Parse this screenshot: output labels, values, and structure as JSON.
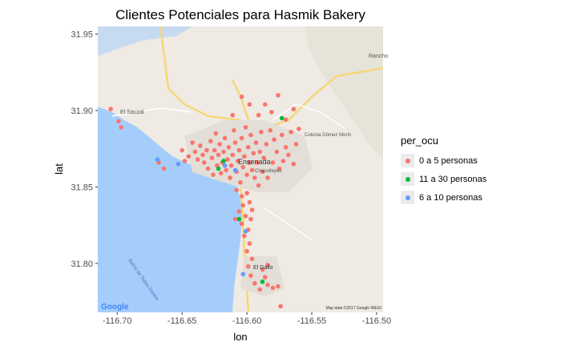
{
  "chart_data": {
    "type": "scatter",
    "title": "Clientes Potenciales para Hasmik Bakery",
    "xlabel": "lon",
    "ylabel": "lat",
    "xlim": [
      -116.715,
      -116.495
    ],
    "ylim": [
      31.768,
      31.955
    ],
    "x_ticks": [
      -116.7,
      -116.65,
      -116.6,
      -116.55,
      -116.5
    ],
    "x_tick_labels": [
      "-116.70",
      "-116.65",
      "-116.60",
      "-116.55",
      "-116.50"
    ],
    "y_ticks": [
      31.8,
      31.85,
      31.9,
      31.95
    ],
    "y_tick_labels": [
      "31.80",
      "31.85",
      "31.90",
      "31.95"
    ],
    "basemap": {
      "provider_logo": "Google",
      "attribution": "Map data ©2017 Google  INEGI",
      "place_labels": [
        "El Sauzal",
        "Ensenada",
        "Colonia Gómez Morín",
        "Chapultepec",
        "El Gallo",
        "Rancho",
        "Bahía de Todos Santos"
      ]
    },
    "legend": {
      "title": "per_ocu",
      "position": "right"
    },
    "series": [
      {
        "name": "0 a 5 personas",
        "color": "#f8766d",
        "points": [
          [
            -116.705,
            31.901
          ],
          [
            -116.699,
            31.893
          ],
          [
            -116.697,
            31.889
          ],
          [
            -116.668,
            31.866
          ],
          [
            -116.664,
            31.862
          ],
          [
            -116.65,
            31.874
          ],
          [
            -116.648,
            31.867
          ],
          [
            -116.645,
            31.87
          ],
          [
            -116.642,
            31.879
          ],
          [
            -116.64,
            31.873
          ],
          [
            -116.638,
            31.868
          ],
          [
            -116.636,
            31.877
          ],
          [
            -116.634,
            31.871
          ],
          [
            -116.633,
            31.866
          ],
          [
            -116.631,
            31.874
          ],
          [
            -116.63,
            31.862
          ],
          [
            -116.628,
            31.88
          ],
          [
            -116.627,
            31.869
          ],
          [
            -116.626,
            31.858
          ],
          [
            -116.625,
            31.874
          ],
          [
            -116.624,
            31.885
          ],
          [
            -116.623,
            31.864
          ],
          [
            -116.622,
            31.871
          ],
          [
            -116.621,
            31.878
          ],
          [
            -116.62,
            31.859
          ],
          [
            -116.619,
            31.866
          ],
          [
            -116.618,
            31.873
          ],
          [
            -116.617,
            31.882
          ],
          [
            -116.616,
            31.861
          ],
          [
            -116.615,
            31.868
          ],
          [
            -116.614,
            31.876
          ],
          [
            -116.613,
            31.856
          ],
          [
            -116.612,
            31.864
          ],
          [
            -116.611,
            31.871
          ],
          [
            -116.61,
            31.887
          ],
          [
            -116.609,
            31.879
          ],
          [
            -116.608,
            31.86
          ],
          [
            -116.607,
            31.867
          ],
          [
            -116.606,
            31.874
          ],
          [
            -116.605,
            31.853
          ],
          [
            -116.604,
            31.882
          ],
          [
            -116.603,
            31.863
          ],
          [
            -116.602,
            31.87
          ],
          [
            -116.601,
            31.889
          ],
          [
            -116.6,
            31.858
          ],
          [
            -116.599,
            31.876
          ],
          [
            -116.598,
            31.866
          ],
          [
            -116.597,
            31.884
          ],
          [
            -116.596,
            31.861
          ],
          [
            -116.595,
            31.872
          ],
          [
            -116.594,
            31.856
          ],
          [
            -116.593,
            31.879
          ],
          [
            -116.592,
            31.866
          ],
          [
            -116.591,
            31.851
          ],
          [
            -116.59,
            31.873
          ],
          [
            -116.589,
            31.886
          ],
          [
            -116.588,
            31.86
          ],
          [
            -116.587,
            31.869
          ],
          [
            -116.585,
            31.878
          ],
          [
            -116.584,
            31.856
          ],
          [
            -116.582,
            31.887
          ],
          [
            -116.58,
            31.866
          ],
          [
            -116.579,
            31.881
          ],
          [
            -116.577,
            31.873
          ],
          [
            -116.575,
            31.862
          ],
          [
            -116.573,
            31.884
          ],
          [
            -116.572,
            31.867
          ],
          [
            -116.57,
            31.876
          ],
          [
            -116.568,
            31.871
          ],
          [
            -116.566,
            31.886
          ],
          [
            -116.564,
            31.865
          ],
          [
            -116.562,
            31.878
          ],
          [
            -116.611,
            31.897
          ],
          [
            -116.604,
            31.909
          ],
          [
            -116.598,
            31.904
          ],
          [
            -116.591,
            31.897
          ],
          [
            -116.586,
            31.904
          ],
          [
            -116.581,
            31.899
          ],
          [
            -116.576,
            31.91
          ],
          [
            -116.57,
            31.894
          ],
          [
            -116.564,
            31.901
          ],
          [
            -116.56,
            31.888
          ],
          [
            -116.608,
            31.848
          ],
          [
            -116.604,
            31.844
          ],
          [
            -116.603,
            31.838
          ],
          [
            -116.6,
            31.846
          ],
          [
            -116.598,
            31.84
          ],
          [
            -116.596,
            31.835
          ],
          [
            -116.601,
            31.831
          ],
          [
            -116.597,
            31.829
          ],
          [
            -116.604,
            31.826
          ],
          [
            -116.599,
            31.822
          ],
          [
            -116.602,
            31.818
          ],
          [
            -116.598,
            31.813
          ],
          [
            -116.6,
            31.808
          ],
          [
            -116.596,
            31.803
          ],
          [
            -116.599,
            31.798
          ],
          [
            -116.597,
            31.792
          ],
          [
            -116.594,
            31.787
          ],
          [
            -116.59,
            31.783
          ],
          [
            -116.584,
            31.786
          ],
          [
            -116.58,
            31.784
          ],
          [
            -116.576,
            31.785
          ],
          [
            -116.588,
            31.796
          ],
          [
            -116.584,
            31.799
          ],
          [
            -116.586,
            31.791
          ],
          [
            -116.574,
            31.772
          ],
          [
            -116.609,
            31.829
          ],
          [
            -116.606,
            31.834
          ]
        ]
      },
      {
        "name": "11 a 30 personas",
        "color": "#00ba38",
        "points": [
          [
            -116.573,
            31.895
          ],
          [
            -116.622,
            31.862
          ],
          [
            -116.618,
            31.867
          ],
          [
            -116.606,
            31.829
          ],
          [
            -116.588,
            31.788
          ]
        ]
      },
      {
        "name": "6 a 10 personas",
        "color": "#619cff",
        "points": [
          [
            -116.669,
            31.868
          ],
          [
            -116.653,
            31.865
          ],
          [
            -116.601,
            31.821
          ],
          [
            -116.603,
            31.793
          ],
          [
            -116.617,
            31.864
          ],
          [
            -116.609,
            31.861
          ]
        ]
      }
    ]
  }
}
